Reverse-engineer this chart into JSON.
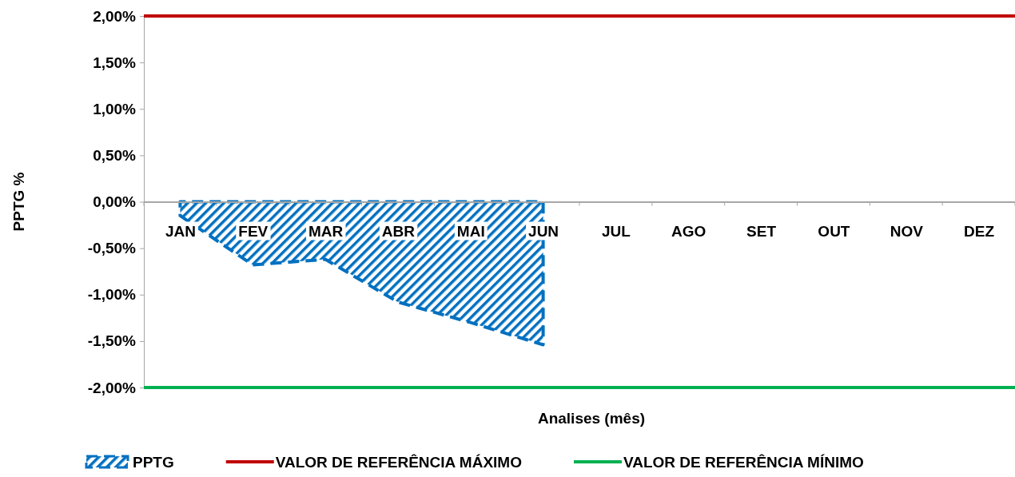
{
  "chart_data": {
    "type": "area",
    "xlabel": "Analises (mês)",
    "ylabel": "PPTG %",
    "categories": [
      "JAN",
      "FEV",
      "MAR",
      "ABR",
      "MAI",
      "JUN",
      "JUL",
      "AGO",
      "SET",
      "OUT",
      "NOV",
      "DEZ"
    ],
    "series": [
      {
        "name": "PPTG",
        "color": "#0070c0",
        "values": [
          -0.15,
          -0.68,
          -0.62,
          -1.08,
          -1.3,
          -1.54,
          null,
          null,
          null,
          null,
          null,
          null
        ]
      }
    ],
    "line_style": "dashed",
    "ylim": [
      -2,
      2
    ],
    "yticks": [
      {
        "value": -2,
        "label": "-2,00%"
      },
      {
        "value": -1.5,
        "label": "-1,50%"
      },
      {
        "value": -1,
        "label": "-1,00%"
      },
      {
        "value": -0.5,
        "label": "-0,50%"
      },
      {
        "value": 0,
        "label": "0,00%"
      },
      {
        "value": 0.5,
        "label": "0,50%"
      },
      {
        "value": 1,
        "label": "1,00%"
      },
      {
        "value": 1.5,
        "label": "1,50%"
      },
      {
        "value": 2,
        "label": "2,00%"
      }
    ],
    "ref_lines": [
      {
        "axis": "y",
        "value": 2,
        "label": "VALOR DE REFERÊNCIA MÁXIMO",
        "color": "#c00000"
      },
      {
        "axis": "y",
        "value": -2,
        "label": "VALOR DE REFERÊNCIA MÍNIMO",
        "color": "#00b050"
      }
    ],
    "grid": false,
    "legend": "bottom"
  }
}
